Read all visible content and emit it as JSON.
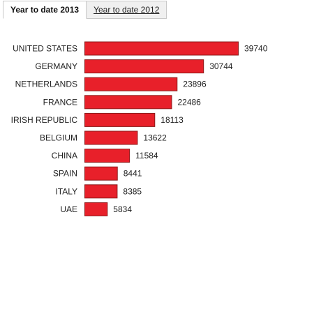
{
  "tabs": [
    {
      "label": "Year to date 2013",
      "active": true
    },
    {
      "label": "Year to date 2012",
      "active": false
    }
  ],
  "colors": {
    "bar_fill": "#e8202a",
    "bar_stroke": "#8c1a1a"
  },
  "chart_data": {
    "type": "bar",
    "orientation": "horizontal",
    "categories": [
      "UNITED STATES",
      "GERMANY",
      "NETHERLANDS",
      "FRANCE",
      "IRISH REPUBLIC",
      "BELGIUM",
      "CHINA",
      "SPAIN",
      "ITALY",
      "UAE"
    ],
    "values": [
      39740,
      30744,
      23896,
      22486,
      18113,
      13622,
      11584,
      8441,
      8385,
      5834
    ],
    "data_labels": true,
    "grid": false,
    "legend": "none"
  }
}
